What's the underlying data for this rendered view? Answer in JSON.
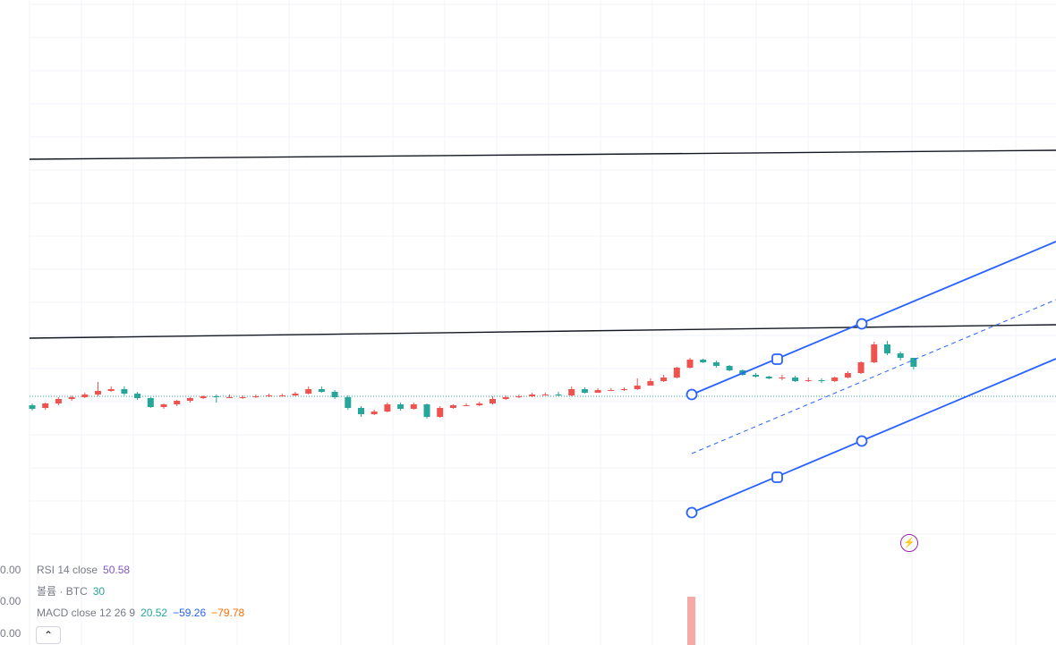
{
  "chart_data": {
    "type": "candlestick",
    "title": "",
    "xlabel": "",
    "ylabel": "",
    "grid": true,
    "ohlc": [
      [
        297,
        293,
        299,
        291
      ],
      [
        294,
        299,
        300,
        292
      ],
      [
        299,
        304,
        306,
        297
      ],
      [
        304,
        306,
        308,
        302
      ],
      [
        306,
        309,
        311,
        305
      ],
      [
        309,
        313,
        323,
        307
      ],
      [
        313,
        315,
        318,
        312
      ],
      [
        315,
        310,
        318,
        308
      ],
      [
        310,
        305,
        312,
        303
      ],
      [
        305,
        295,
        306,
        294
      ],
      [
        295,
        298,
        299,
        293
      ],
      [
        298,
        302,
        303,
        296
      ],
      [
        302,
        305,
        306,
        300
      ],
      [
        305,
        307,
        308,
        304
      ],
      [
        307,
        306,
        309,
        300
      ],
      [
        306,
        306,
        309,
        305
      ],
      [
        306,
        306,
        308,
        304
      ],
      [
        306,
        307,
        309,
        305
      ],
      [
        307,
        308,
        310,
        306
      ],
      [
        308,
        308,
        310,
        307
      ],
      [
        308,
        310,
        312,
        307
      ],
      [
        310,
        315,
        318,
        309
      ],
      [
        315,
        312,
        318,
        311
      ],
      [
        312,
        306,
        314,
        304
      ],
      [
        306,
        294,
        308,
        292
      ],
      [
        294,
        287,
        296,
        284
      ],
      [
        287,
        290,
        292,
        286
      ],
      [
        290,
        298,
        300,
        289
      ],
      [
        298,
        293,
        300,
        291
      ],
      [
        293,
        298,
        300,
        292
      ],
      [
        298,
        284,
        299,
        282
      ],
      [
        284,
        294,
        296,
        283
      ],
      [
        294,
        297,
        298,
        293
      ],
      [
        297,
        297,
        299,
        296
      ],
      [
        297,
        299,
        301,
        296
      ],
      [
        299,
        304,
        307,
        298
      ],
      [
        304,
        306,
        308,
        303
      ],
      [
        306,
        307,
        309,
        305
      ],
      [
        307,
        309,
        311,
        306
      ],
      [
        309,
        309,
        311,
        308
      ],
      [
        309,
        308,
        312,
        307
      ],
      [
        308,
        315,
        318,
        307
      ],
      [
        315,
        311,
        317,
        310
      ],
      [
        311,
        314,
        316,
        311
      ],
      [
        314,
        314,
        316,
        313
      ],
      [
        314,
        315,
        317,
        313
      ],
      [
        315,
        319,
        327,
        314
      ],
      [
        319,
        324,
        327,
        319
      ],
      [
        324,
        328,
        331,
        323
      ],
      [
        328,
        339,
        340,
        327
      ],
      [
        339,
        348,
        350,
        338
      ],
      [
        348,
        345,
        349,
        344
      ],
      [
        345,
        341,
        347,
        339
      ],
      [
        341,
        336,
        342,
        335
      ],
      [
        336,
        331,
        337,
        330
      ],
      [
        331,
        329,
        333,
        328
      ],
      [
        329,
        327,
        330,
        326
      ],
      [
        327,
        328,
        331,
        325
      ],
      [
        328,
        324,
        330,
        323
      ],
      [
        324,
        325,
        328,
        323
      ],
      [
        325,
        324,
        327,
        322
      ],
      [
        324,
        328,
        329,
        323
      ],
      [
        328,
        333,
        335,
        327
      ],
      [
        333,
        345,
        346,
        332
      ],
      [
        345,
        365,
        368,
        344
      ],
      [
        365,
        355,
        369,
        353
      ],
      [
        355,
        350,
        357,
        347
      ],
      [
        350,
        340,
        350,
        337
      ]
    ]
  },
  "legend": {
    "rsi": {
      "label": "RSI 14 close",
      "value": "50.58"
    },
    "volume": {
      "label": "볼륨 · BTC",
      "value": "30"
    },
    "macd": {
      "label": "MACD close 12 26 9",
      "v1": "20.52",
      "v2": "−59.26",
      "v3": "−79.78"
    }
  },
  "axis_labels": [
    "0.00",
    "0.00",
    "0.00"
  ],
  "colors": {
    "up": "#26a69a",
    "down": "#ef5350",
    "channel": "#2962ff",
    "trendline": "#131722",
    "grid": "#f0f3fa",
    "price_line": "#26a69a",
    "rsi_value": "#7e57c2",
    "volume_value": "#26a69a",
    "macd_v1": "#26a69a",
    "macd_v2": "#2962ff",
    "macd_v3": "#ff6d00"
  },
  "icons": {
    "collapse": "chevron-up-icon",
    "alert": "lightning-icon"
  }
}
